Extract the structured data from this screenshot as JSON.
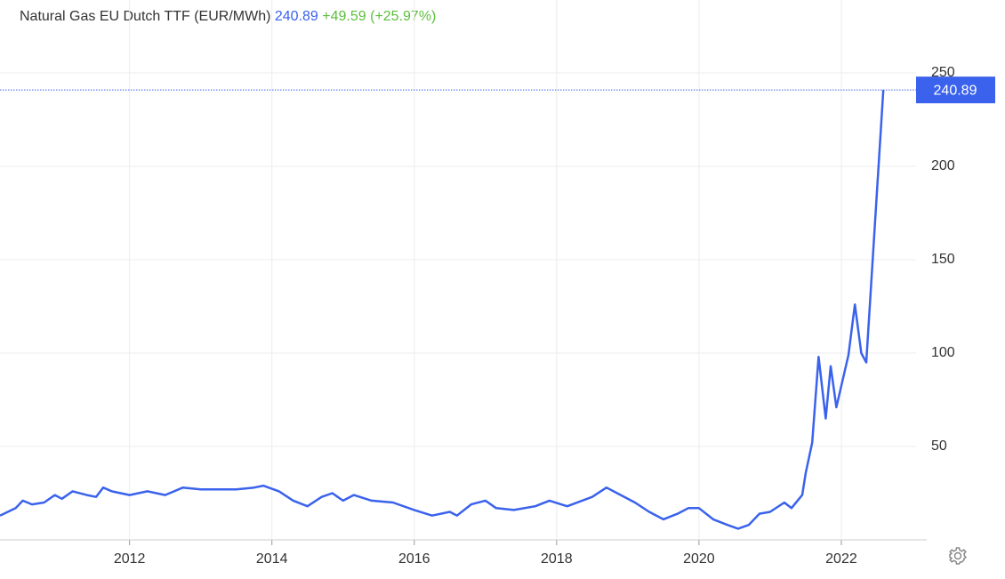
{
  "chart_data": {
    "type": "line",
    "title": "Natural Gas EU Dutch TTF (EUR/MWh)",
    "change": "+49.59",
    "change_percent": "(+25.97%)",
    "x": [
      2010.18,
      2010.4,
      2010.5,
      2010.63,
      2010.8,
      2010.95,
      2011.05,
      2011.2,
      2011.4,
      2011.53,
      2011.63,
      2011.75,
      2012.0,
      2012.25,
      2012.5,
      2012.75,
      2013.0,
      2013.25,
      2013.5,
      2013.75,
      2013.88,
      2014.1,
      2014.3,
      2014.5,
      2014.7,
      2014.85,
      2015.0,
      2015.15,
      2015.4,
      2015.7,
      2016.0,
      2016.25,
      2016.5,
      2016.6,
      2016.8,
      2017.0,
      2017.15,
      2017.4,
      2017.7,
      2017.9,
      2018.15,
      2018.5,
      2018.7,
      2018.85,
      2019.1,
      2019.3,
      2019.5,
      2019.7,
      2019.85,
      2020.0,
      2020.2,
      2020.4,
      2020.55,
      2020.7,
      2020.85,
      2021.0,
      2021.2,
      2021.3,
      2021.45,
      2021.5,
      2021.59,
      2021.68,
      2021.78,
      2021.85,
      2021.93,
      2022.1,
      2022.19,
      2022.28,
      2022.35,
      2022.59
    ],
    "series": [
      {
        "name": "Natural Gas EU Dutch TTF",
        "color": "#3a62ec",
        "values": [
          13,
          17,
          21,
          19,
          20,
          24,
          22,
          26,
          24,
          23,
          28,
          26,
          24,
          26,
          24,
          28,
          27,
          27,
          27,
          28,
          29,
          26,
          21,
          18,
          23,
          25,
          21,
          24,
          21,
          20,
          16,
          13,
          15,
          13,
          19,
          21,
          17,
          16,
          18,
          21,
          18,
          23,
          28,
          25,
          20,
          15,
          11,
          14,
          17,
          17,
          11,
          8,
          6,
          8,
          14,
          15,
          20,
          17,
          24,
          36,
          52,
          98,
          65,
          93,
          71,
          99,
          126,
          100,
          95,
          240.89
        ]
      }
    ],
    "xlim": [
      2010.18,
      2023.05
    ],
    "xticks": [
      2012,
      2014,
      2016,
      2018,
      2020,
      2022
    ],
    "ylim": [
      0,
      250
    ],
    "yticks": [
      50,
      100,
      150,
      200,
      250
    ],
    "grid": true
  }
}
